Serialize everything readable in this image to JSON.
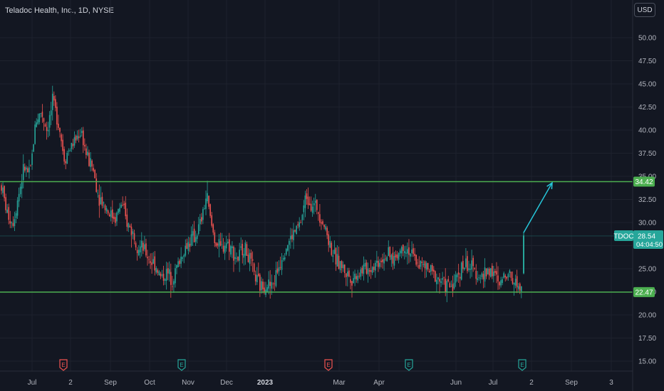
{
  "header": {
    "title": "Teladoc Health, Inc., 1D, NYSE",
    "currency": "USD"
  },
  "colors": {
    "background": "#131722",
    "up": "#26a69a",
    "down": "#ef5350",
    "level_line": "#4caf50",
    "arrow": "#26c6da",
    "grid": "#1e222d"
  },
  "labels": {
    "ticker": "TDOC",
    "last_price": "28.54",
    "countdown": "04:04:50",
    "resistance": "34.42",
    "support": "22.47"
  },
  "chart_data": {
    "type": "candlestick",
    "title": "Teladoc Health, Inc., 1D, NYSE",
    "ylim": [
      13.75,
      51.5
    ],
    "y_ticks": [
      "15.00",
      "17.50",
      "20.00",
      "22.50",
      "25.00",
      "27.50",
      "30.00",
      "32.50",
      "35.00",
      "37.50",
      "40.00",
      "42.50",
      "45.00",
      "47.50",
      "50.00"
    ],
    "x_ticks": [
      {
        "label": "Jul",
        "bold": false,
        "x": 45
      },
      {
        "label": "2",
        "bold": false,
        "x": 99
      },
      {
        "label": "Sep",
        "bold": false,
        "x": 155
      },
      {
        "label": "Oct",
        "bold": false,
        "x": 210
      },
      {
        "label": "Nov",
        "bold": false,
        "x": 264
      },
      {
        "label": "Dec",
        "bold": false,
        "x": 318
      },
      {
        "label": "2023",
        "bold": true,
        "x": 372
      },
      {
        "label": "Mar",
        "bold": false,
        "x": 476
      },
      {
        "label": "Apr",
        "bold": false,
        "x": 532
      },
      {
        "label": "Jun",
        "bold": false,
        "x": 640
      },
      {
        "label": "Jul",
        "bold": false,
        "x": 692
      },
      {
        "label": "2",
        "bold": false,
        "x": 746
      },
      {
        "label": "Sep",
        "bold": false,
        "x": 802
      },
      {
        "label": "3",
        "bold": false,
        "x": 858
      }
    ],
    "horizontal_levels": [
      {
        "value": 34.42,
        "label": "34.42"
      },
      {
        "value": 22.47,
        "label": "22.47"
      }
    ],
    "last_price": 28.54,
    "projection": {
      "from": [
        735,
        28.9
      ],
      "to": [
        775,
        34.3
      ]
    },
    "earnings_markers": [
      {
        "x": 89,
        "color": "down",
        "label": "E"
      },
      {
        "x": 255,
        "color": "up",
        "label": "E"
      },
      {
        "x": 461,
        "color": "down",
        "label": "E"
      },
      {
        "x": 574,
        "color": "up",
        "label": "E"
      },
      {
        "x": 733,
        "color": "up",
        "label": "E"
      }
    ],
    "path_points": [
      [
        2,
        34
      ],
      [
        10,
        31
      ],
      [
        18,
        30
      ],
      [
        26,
        33
      ],
      [
        34,
        36
      ],
      [
        42,
        35
      ],
      [
        50,
        41
      ],
      [
        58,
        42
      ],
      [
        66,
        40
      ],
      [
        74,
        43
      ],
      [
        82,
        41
      ],
      [
        90,
        37
      ],
      [
        98,
        38
      ],
      [
        106,
        39
      ],
      [
        114,
        40
      ],
      [
        122,
        37
      ],
      [
        130,
        36
      ],
      [
        138,
        33
      ],
      [
        146,
        32
      ],
      [
        154,
        31
      ],
      [
        162,
        30.5
      ],
      [
        170,
        32
      ],
      [
        178,
        30
      ],
      [
        186,
        29
      ],
      [
        194,
        27.5
      ],
      [
        202,
        27
      ],
      [
        210,
        26
      ],
      [
        218,
        25.5
      ],
      [
        226,
        24
      ],
      [
        234,
        24.5
      ],
      [
        242,
        24
      ],
      [
        250,
        25.5
      ],
      [
        258,
        27
      ],
      [
        266,
        28
      ],
      [
        274,
        28.5
      ],
      [
        282,
        30
      ],
      [
        290,
        33
      ],
      [
        296,
        30
      ],
      [
        302,
        28
      ],
      [
        310,
        27
      ],
      [
        318,
        28
      ],
      [
        326,
        27
      ],
      [
        334,
        26
      ],
      [
        342,
        27.5
      ],
      [
        350,
        26
      ],
      [
        358,
        24
      ],
      [
        366,
        23
      ],
      [
        374,
        23.5
      ],
      [
        382,
        23
      ],
      [
        390,
        25
      ],
      [
        398,
        27
      ],
      [
        406,
        28
      ],
      [
        414,
        29
      ],
      [
        422,
        30
      ],
      [
        430,
        33
      ],
      [
        438,
        32
      ],
      [
        446,
        31.5
      ],
      [
        454,
        30
      ],
      [
        462,
        28
      ],
      [
        470,
        26
      ],
      [
        478,
        25.5
      ],
      [
        486,
        24.5
      ],
      [
        494,
        24
      ],
      [
        502,
        24.5
      ],
      [
        510,
        25
      ],
      [
        518,
        25
      ],
      [
        526,
        25.5
      ],
      [
        534,
        26
      ],
      [
        542,
        26.5
      ],
      [
        550,
        26
      ],
      [
        558,
        26.5
      ],
      [
        566,
        27.5
      ],
      [
        574,
        27
      ],
      [
        582,
        26
      ],
      [
        590,
        25.5
      ],
      [
        598,
        25
      ],
      [
        606,
        24.5
      ],
      [
        614,
        24
      ],
      [
        622,
        23.5
      ],
      [
        630,
        23
      ],
      [
        638,
        23.5
      ],
      [
        646,
        25
      ],
      [
        654,
        25.5
      ],
      [
        662,
        25
      ],
      [
        670,
        24.5
      ],
      [
        678,
        24
      ],
      [
        686,
        25
      ],
      [
        694,
        24.5
      ],
      [
        700,
        23
      ],
      [
        706,
        24
      ],
      [
        712,
        25
      ],
      [
        718,
        24
      ],
      [
        724,
        23.5
      ],
      [
        730,
        23
      ],
      [
        735,
        24.5
      ]
    ]
  }
}
